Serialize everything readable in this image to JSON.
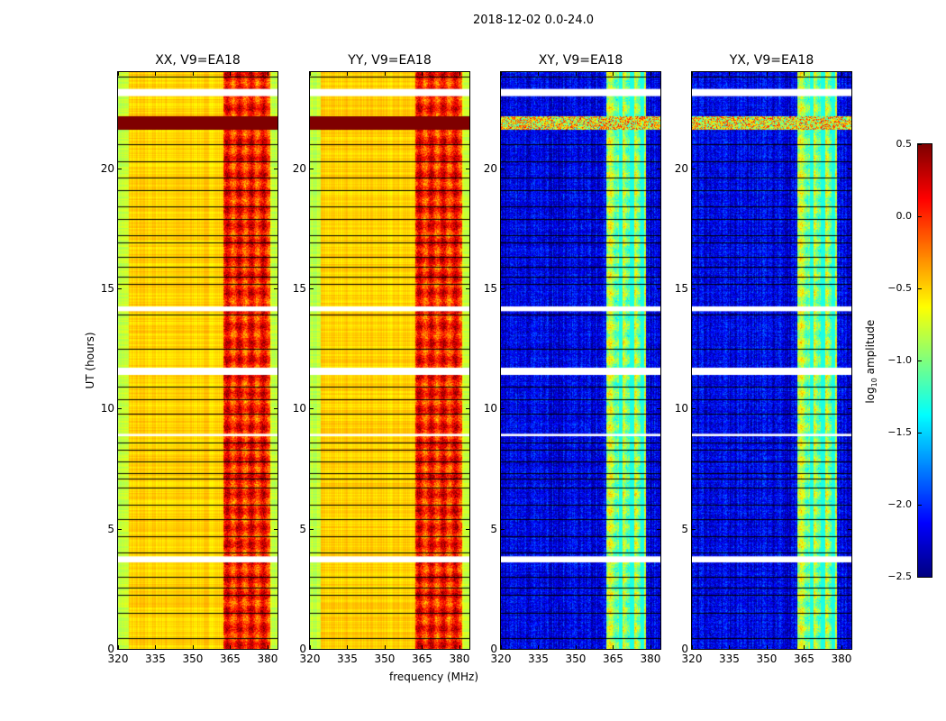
{
  "chart_data": {
    "type": "heatmap",
    "title": "2018-12-02 0.0-24.0",
    "xlabel": "frequency (MHz)",
    "ylabel": "UT (hours)",
    "xlim": [
      320,
      384
    ],
    "ylim": [
      0,
      24
    ],
    "xticks": [
      "320",
      "335",
      "350",
      "365",
      "380"
    ],
    "yticks": [
      "0",
      "5",
      "10",
      "15",
      "20"
    ],
    "colorbar": {
      "label": "log10 amplitude",
      "label_main": "log",
      "label_sub": "10",
      "label_rest": " amplitude",
      "range": [
        -2.5,
        0.5
      ],
      "ticks": [
        "0.5",
        "0.0",
        "−0.5",
        "−1.0",
        "−1.5",
        "−2.0",
        "−2.5"
      ],
      "colormap": "jet"
    },
    "panels": [
      {
        "title": "XX, V9=EA18",
        "background_level": -0.5,
        "band_level": 0.05,
        "band_mhz": [
          362,
          381
        ],
        "rfi_hours": [
          21.6,
          22.2
        ],
        "rfi_level": 0.5
      },
      {
        "title": "YY, V9=EA18",
        "background_level": -0.5,
        "band_level": 0.05,
        "band_mhz": [
          362,
          381
        ],
        "rfi_hours": [
          21.6,
          22.2
        ],
        "rfi_level": 0.5
      },
      {
        "title": "XY, V9=EA18",
        "background_level": -2.2,
        "band_level": -0.9,
        "band_mhz": [
          362,
          378
        ],
        "rfi_hours": [
          21.6,
          22.2
        ],
        "rfi_level": -0.6
      },
      {
        "title": "YX, V9=EA18",
        "background_level": -2.2,
        "band_level": -0.9,
        "band_mhz": [
          362,
          378
        ],
        "rfi_hours": [
          21.6,
          22.2
        ],
        "rfi_level": -0.6
      }
    ],
    "blank_hours": [
      [
        23.0,
        23.3
      ],
      [
        14.05,
        14.25
      ],
      [
        11.4,
        11.7
      ],
      [
        8.85,
        8.95
      ],
      [
        3.6,
        3.85
      ]
    ],
    "flag_line_hours": [
      23.8,
      23.3,
      21.0,
      20.3,
      19.6,
      19.1,
      18.4,
      17.9,
      17.2,
      16.9,
      16.3,
      15.9,
      15.5,
      15.2,
      14.2,
      13.9,
      12.5,
      10.9,
      10.4,
      9.8,
      8.6,
      8.3,
      7.8,
      7.3,
      7.1,
      6.7,
      6.0,
      5.4,
      4.7,
      4.0,
      3.0,
      2.55,
      2.25,
      1.5,
      0.45
    ]
  }
}
